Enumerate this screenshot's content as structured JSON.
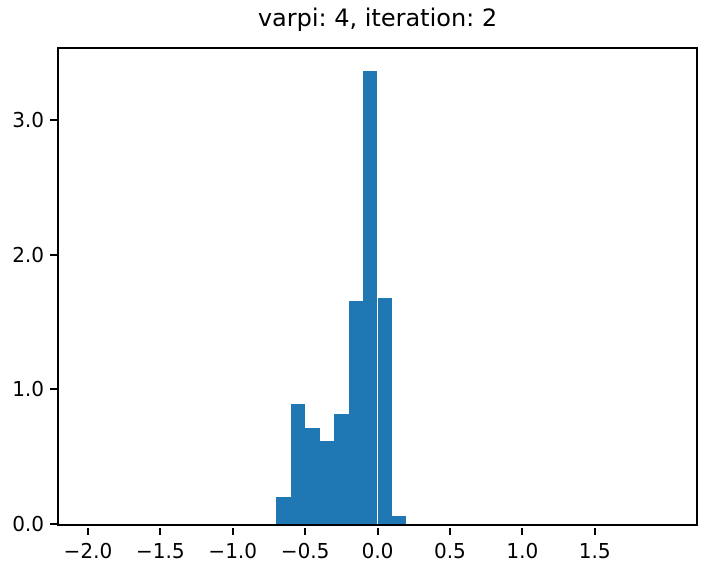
{
  "figure": {
    "background": "#ffffff"
  },
  "chart_data": {
    "type": "bar",
    "subtype": "histogram",
    "title": "varpi: 4, iteration: 2",
    "bin_edges": [
      -0.7,
      -0.6,
      -0.5,
      -0.4,
      -0.3,
      -0.2,
      -0.1,
      0.0,
      0.1,
      0.2
    ],
    "values": [
      0.2,
      0.89,
      0.71,
      0.62,
      0.82,
      1.66,
      3.37,
      1.68,
      0.06
    ],
    "bar_color": "#1f77b4",
    "xlabel": "",
    "ylabel": "",
    "xlim": [
      -2.2,
      2.2
    ],
    "ylim": [
      0,
      3.53
    ],
    "x_ticks": {
      "positions": [
        -2.0,
        -1.5,
        -1.0,
        -0.5,
        0.0,
        0.5,
        1.0,
        1.5
      ],
      "labels": [
        "−2.0",
        "−1.5",
        "−1.0",
        "−0.5",
        "0.0",
        "0.5",
        "1.0",
        "1.5"
      ]
    },
    "y_ticks": {
      "positions": [
        0,
        1,
        2,
        3
      ],
      "labels": [
        "0.0",
        "1.0",
        "2.0",
        "3.0"
      ]
    },
    "grid": false,
    "legend": null,
    "axis_color": "#000000",
    "text_color": "#000000"
  }
}
